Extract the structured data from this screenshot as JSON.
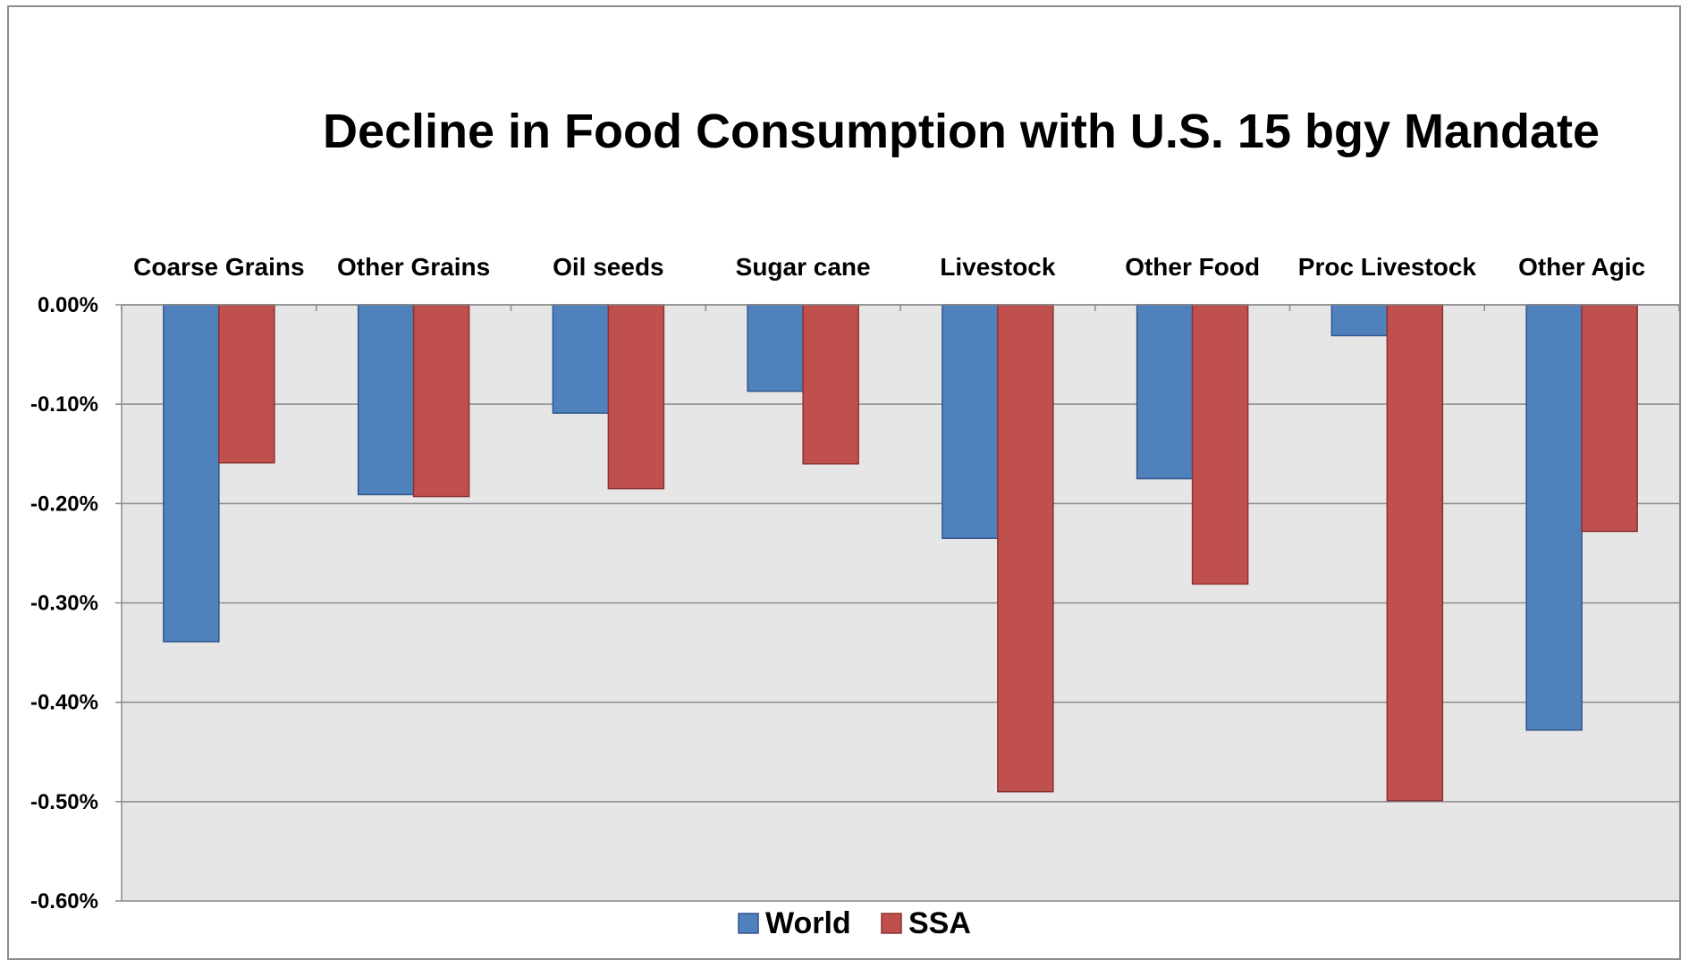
{
  "chart_data": {
    "type": "bar",
    "title": "Decline in Food Consumption with U.S. 15 bgy Mandate",
    "xlabel": "",
    "ylabel": "",
    "categories": [
      "Coarse Grains",
      "Other Grains",
      "Oil seeds",
      "Sugar cane",
      "Livestock",
      "Other Food",
      "Proc Livestock",
      "Other Agic"
    ],
    "series": [
      {
        "name": "World",
        "color": "#4f81bd",
        "values": [
          -0.339,
          -0.191,
          -0.109,
          -0.087,
          -0.235,
          -0.175,
          -0.031,
          -0.428
        ]
      },
      {
        "name": "SSA",
        "color": "#c0504d",
        "values": [
          -0.159,
          -0.193,
          -0.185,
          -0.16,
          -0.49,
          -0.281,
          -0.499,
          -0.228
        ]
      }
    ],
    "ylim": [
      -0.006,
      0.0
    ],
    "yticks": [
      "0.00%",
      "-0.10%",
      "-0.20%",
      "-0.30%",
      "-0.40%",
      "-0.50%",
      "-0.60%"
    ],
    "ytick_values": [
      0.0,
      -0.1,
      -0.2,
      -0.3,
      -0.4,
      -0.5,
      -0.6
    ],
    "grid": true,
    "legend": "bottom",
    "plot_background": "#e6e6e6"
  }
}
